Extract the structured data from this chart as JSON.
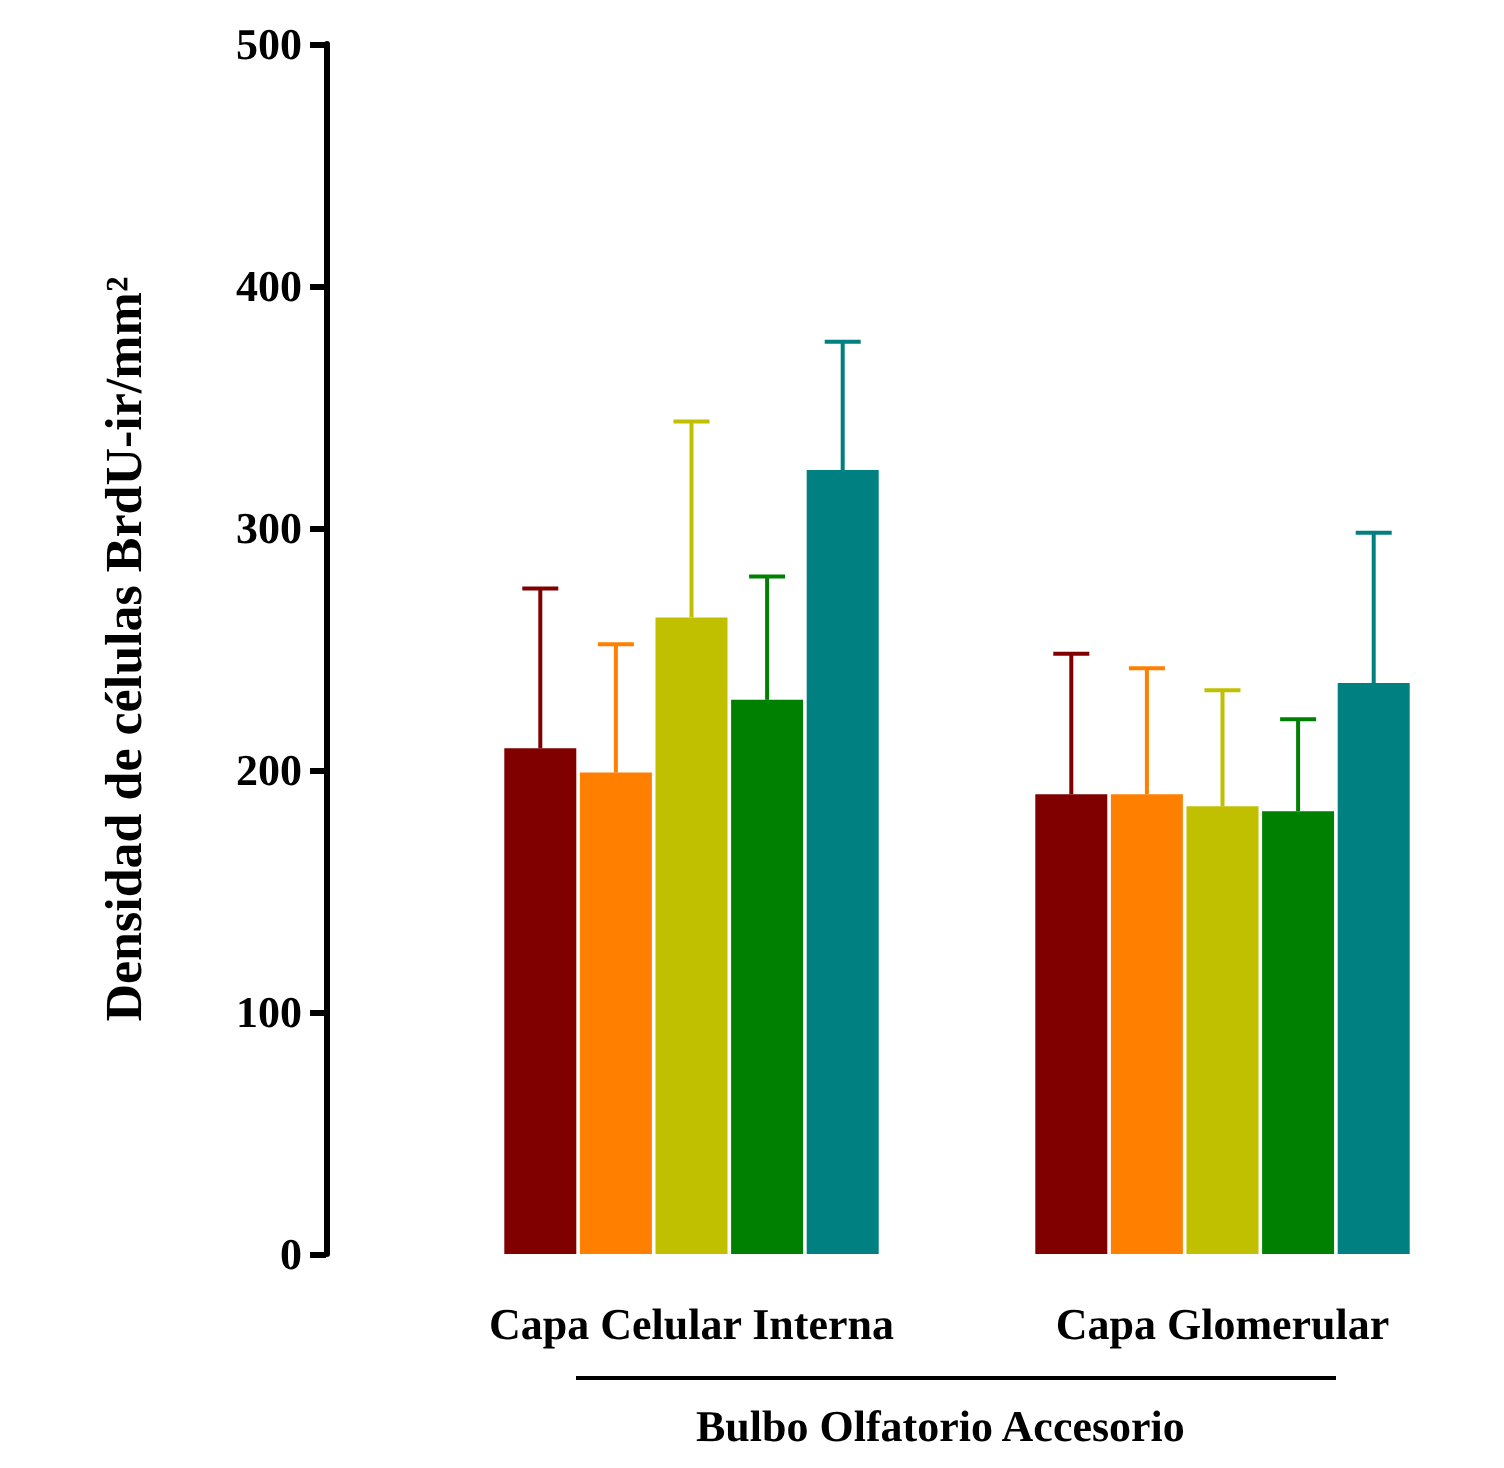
{
  "chart_data": {
    "type": "bar",
    "categories": [
      "Capa Celular Interna",
      "Capa Glomerular"
    ],
    "ylabel": "Densidad de células BrdU-ir/mm²",
    "series": [
      {
        "color": "#800000",
        "values": [
          209,
          190
        ],
        "errors": [
          [
            209,
            275
          ],
          [
            190,
            248
          ]
        ]
      },
      {
        "color": "#ff8000",
        "values": [
          199,
          190
        ],
        "errors": [
          [
            199,
            252
          ],
          [
            190,
            242
          ]
        ]
      },
      {
        "color": "#c0c000",
        "values": [
          263,
          185
        ],
        "errors": [
          [
            263,
            344
          ],
          [
            185,
            233
          ]
        ]
      },
      {
        "color": "#008000",
        "values": [
          229,
          183
        ],
        "errors": [
          [
            229,
            280
          ],
          [
            183,
            221
          ]
        ]
      },
      {
        "color": "#008080",
        "values": [
          324,
          236
        ],
        "errors": [
          [
            324,
            377
          ],
          [
            236,
            298
          ]
        ]
      }
    ],
    "ylim": [
      0,
      500
    ],
    "yticks": [
      0,
      100,
      200,
      300,
      400,
      500
    ],
    "grid": false,
    "annotations": [
      "Bulbo Olfatorio Accesorio"
    ]
  }
}
